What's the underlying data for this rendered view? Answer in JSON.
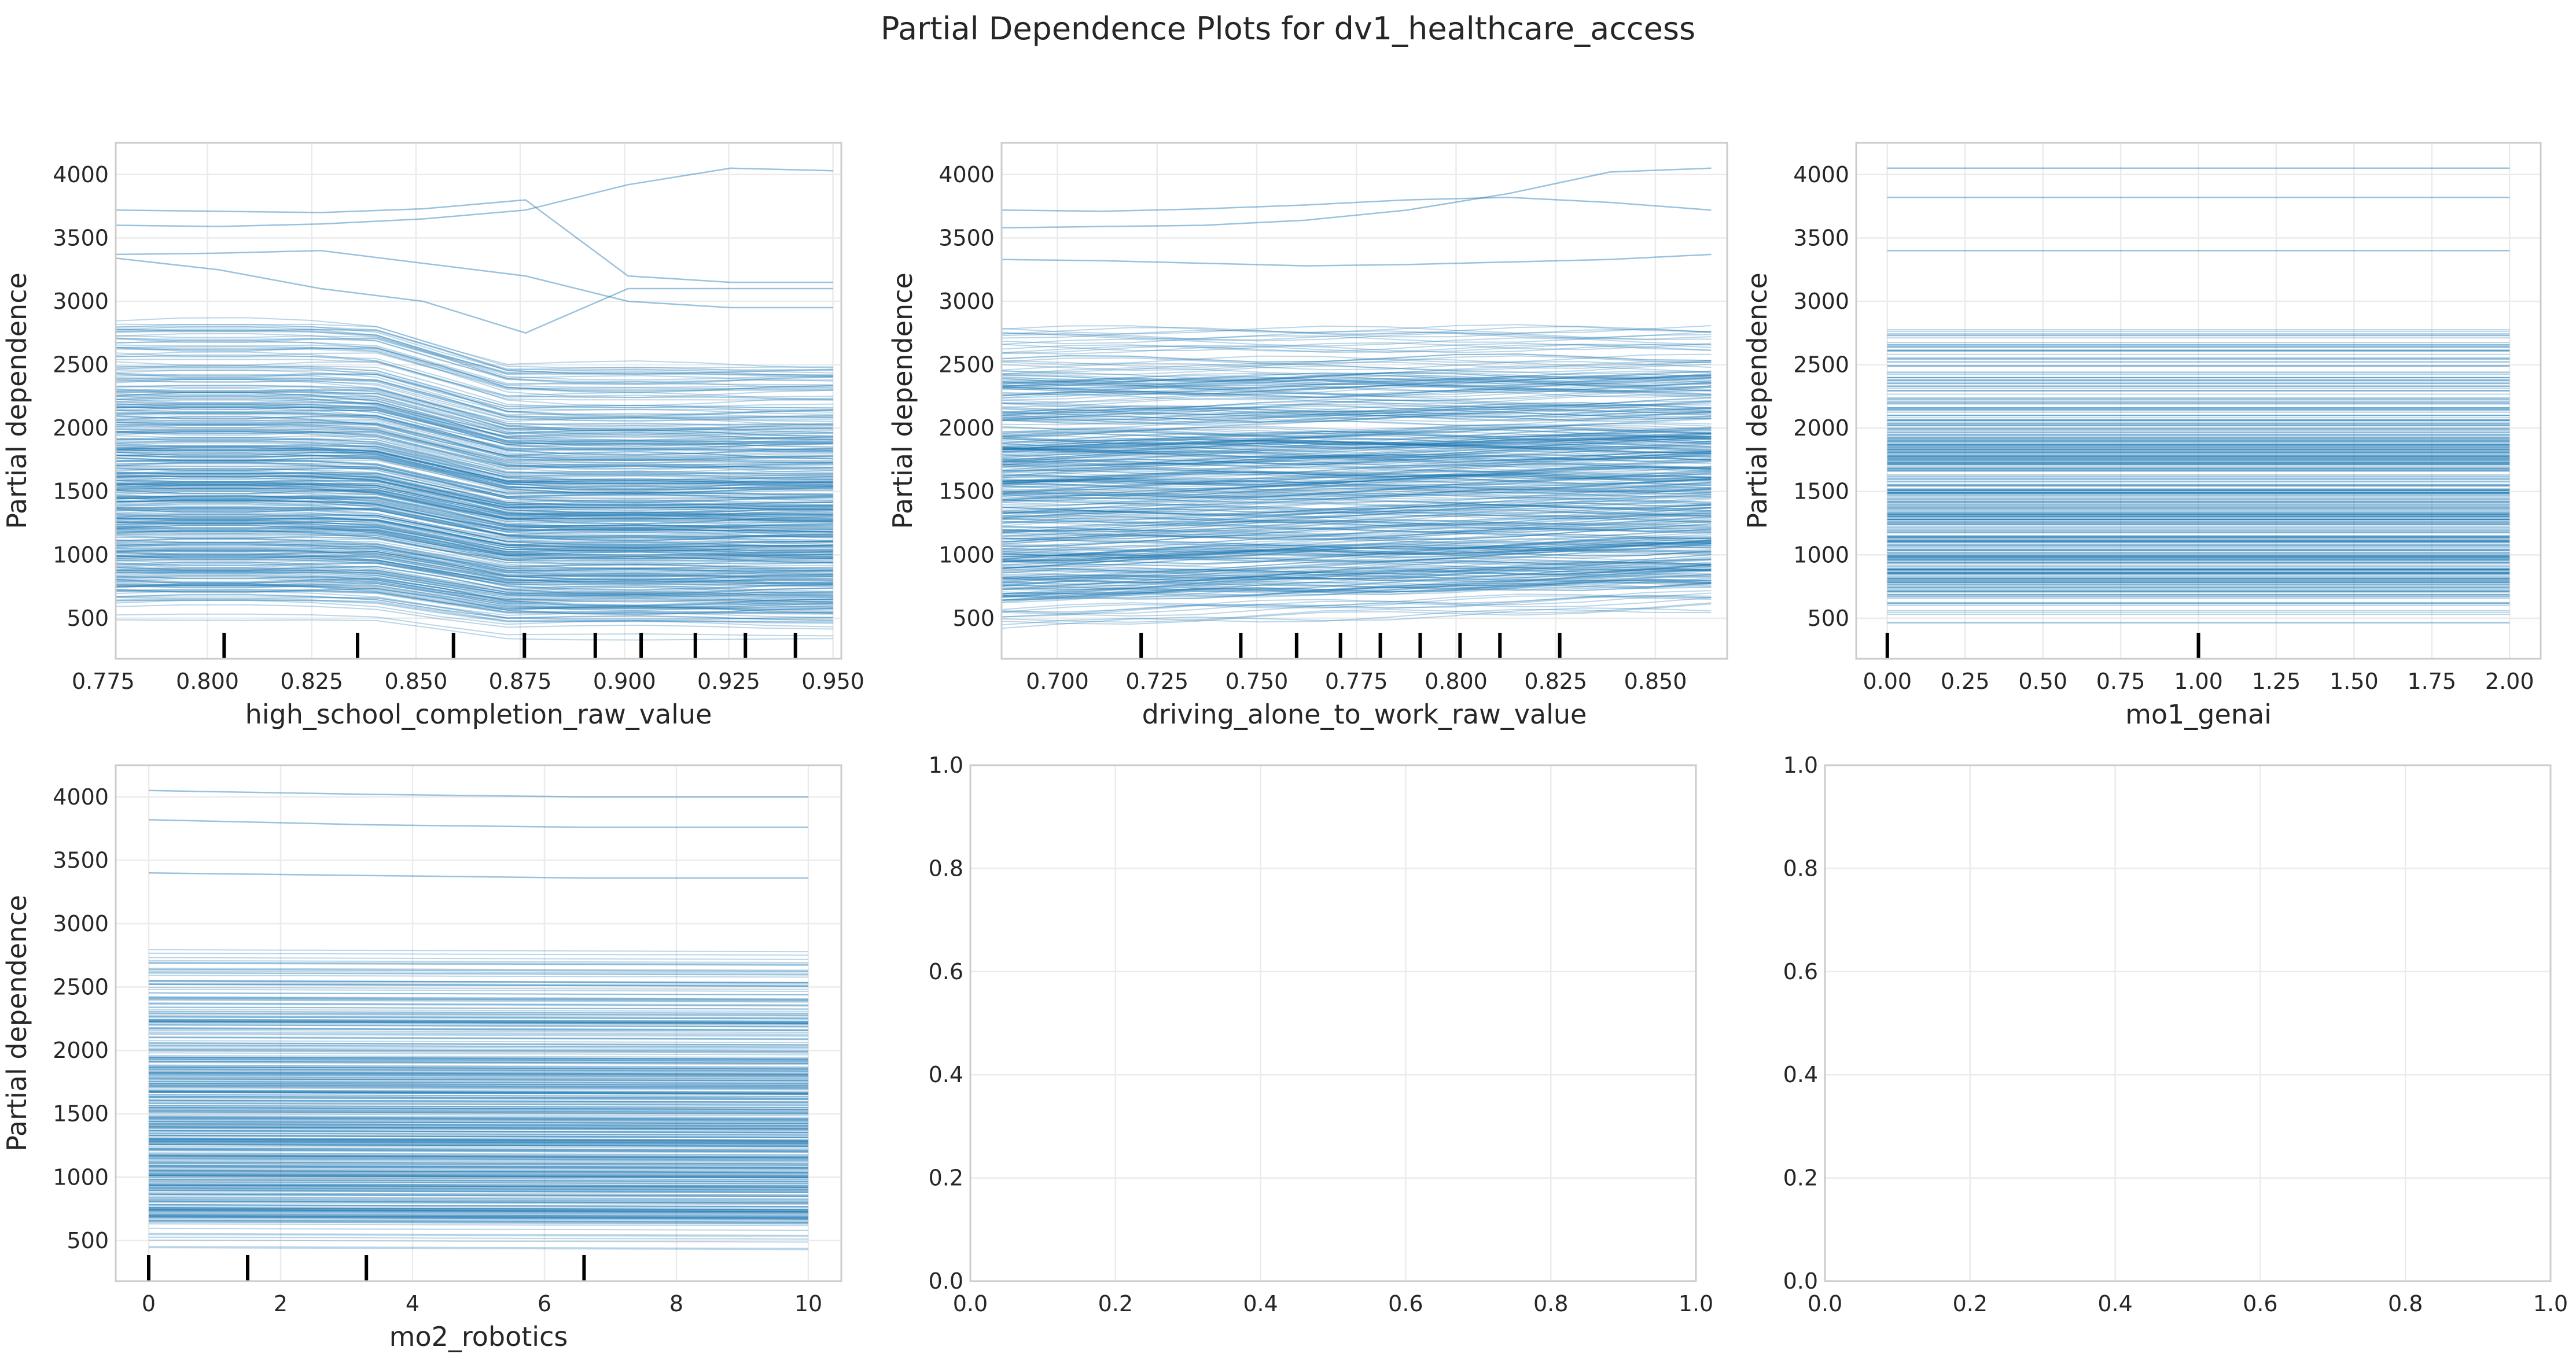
{
  "figure": {
    "title": "Partial Dependence Plots for dv1_healthcare_access",
    "line_color": "#1f77b4",
    "rug_color": "#000000",
    "grid_color": "#ebebeb",
    "frame_color": "#cccccc"
  },
  "chart_data": [
    {
      "type": "line",
      "description_kind": "individual-conditional-expectation",
      "xlabel": "high_school_completion_raw_value",
      "ylabel": "Partial dependence",
      "xlim": [
        0.778,
        0.952
      ],
      "ylim": [
        180,
        4250
      ],
      "x_ticks": [
        0.775,
        0.8,
        0.825,
        0.85,
        0.875,
        0.9,
        0.925,
        0.95
      ],
      "x_tick_labels": [
        "0.775",
        "0.800",
        "0.825",
        "0.850",
        "0.875",
        "0.900",
        "0.925",
        "0.950"
      ],
      "y_ticks": [
        500,
        1000,
        1500,
        2000,
        2500,
        3000,
        3500,
        4000
      ],
      "y_tick_labels": [
        "500",
        "1000",
        "1500",
        "2000",
        "2500",
        "3000",
        "3500",
        "4000"
      ],
      "x_range": [
        0.778,
        0.95
      ],
      "rug": [
        0.804,
        0.836,
        0.859,
        0.876,
        0.893,
        0.904,
        0.917,
        0.929,
        0.941
      ],
      "pattern": "drop",
      "lines_count": 420,
      "highlight_lines": [
        {
          "y": [
            3720,
            3710,
            3700,
            3730,
            3800,
            3200,
            3150,
            3150
          ]
        },
        {
          "y": [
            3600,
            3590,
            3610,
            3650,
            3720,
            3920,
            4050,
            4030
          ]
        },
        {
          "y": [
            3370,
            3380,
            3400,
            3300,
            3200,
            3000,
            2950,
            2950
          ]
        },
        {
          "y": [
            3340,
            3250,
            3100,
            3000,
            2750,
            3100,
            3100,
            3100
          ]
        }
      ]
    },
    {
      "type": "line",
      "description_kind": "individual-conditional-expectation",
      "xlabel": "driving_alone_to_work_raw_value",
      "ylabel": "Partial dependence",
      "xlim": [
        0.686,
        0.868
      ],
      "ylim": [
        180,
        4250
      ],
      "x_ticks": [
        0.7,
        0.725,
        0.75,
        0.775,
        0.8,
        0.825,
        0.85
      ],
      "x_tick_labels": [
        "0.700",
        "0.725",
        "0.750",
        "0.775",
        "0.800",
        "0.825",
        "0.850"
      ],
      "y_ticks": [
        500,
        1000,
        1500,
        2000,
        2500,
        3000,
        3500,
        4000
      ],
      "y_tick_labels": [
        "500",
        "1000",
        "1500",
        "2000",
        "2500",
        "3000",
        "3500",
        "4000"
      ],
      "x_range": [
        0.686,
        0.864
      ],
      "rug": [
        0.721,
        0.746,
        0.76,
        0.771,
        0.781,
        0.791,
        0.801,
        0.811,
        0.826
      ],
      "pattern": "rise",
      "lines_count": 420,
      "highlight_lines": [
        {
          "y": [
            3720,
            3710,
            3730,
            3760,
            3800,
            3820,
            3780,
            3720
          ]
        },
        {
          "y": [
            3580,
            3590,
            3600,
            3640,
            3720,
            3850,
            4020,
            4050
          ]
        },
        {
          "y": [
            3330,
            3320,
            3300,
            3280,
            3290,
            3310,
            3330,
            3370
          ]
        }
      ]
    },
    {
      "type": "line",
      "description_kind": "individual-conditional-expectation",
      "xlabel": "mo1_genai",
      "ylabel": "Partial dependence",
      "xlim": [
        -0.1,
        2.1
      ],
      "ylim": [
        180,
        4250
      ],
      "x_ticks": [
        0,
        0.25,
        0.5,
        0.75,
        1,
        1.25,
        1.5,
        1.75,
        2
      ],
      "x_tick_labels": [
        "0.00",
        "0.25",
        "0.50",
        "0.75",
        "1.00",
        "1.25",
        "1.50",
        "1.75",
        "2.00"
      ],
      "y_ticks": [
        500,
        1000,
        1500,
        2000,
        2500,
        3000,
        3500,
        4000
      ],
      "y_tick_labels": [
        "500",
        "1000",
        "1500",
        "2000",
        "2500",
        "3000",
        "3500",
        "4000"
      ],
      "x_range": [
        0,
        2
      ],
      "rug": [
        0,
        1
      ],
      "pattern": "flat",
      "lines_count": 420,
      "highlight_lines": [
        {
          "y": [
            4050,
            4050
          ]
        },
        {
          "y": [
            3820,
            3820
          ]
        },
        {
          "y": [
            3400,
            3400
          ]
        }
      ]
    },
    {
      "type": "line",
      "description_kind": "individual-conditional-expectation",
      "xlabel": "mo2_robotics",
      "ylabel": "Partial dependence",
      "xlim": [
        -0.5,
        10.5
      ],
      "ylim": [
        180,
        4250
      ],
      "x_ticks": [
        0,
        2,
        4,
        6,
        8,
        10
      ],
      "x_tick_labels": [
        "0",
        "2",
        "4",
        "6",
        "8",
        "10"
      ],
      "y_ticks": [
        500,
        1000,
        1500,
        2000,
        2500,
        3000,
        3500,
        4000
      ],
      "y_tick_labels": [
        "500",
        "1000",
        "1500",
        "2000",
        "2500",
        "3000",
        "3500",
        "4000"
      ],
      "x_range": [
        0,
        10
      ],
      "rug": [
        0,
        1.5,
        3.3,
        6.6
      ],
      "pattern": "flat-slight",
      "lines_count": 420,
      "highlight_lines": [
        {
          "y": [
            4050,
            4020,
            4000,
            4000
          ]
        },
        {
          "y": [
            3820,
            3780,
            3760,
            3760
          ]
        },
        {
          "y": [
            3400,
            3380,
            3360,
            3360
          ]
        }
      ]
    },
    {
      "type": "empty",
      "xlim": [
        0,
        1
      ],
      "ylim": [
        0,
        1
      ],
      "x_ticks": [
        0,
        0.2,
        0.4,
        0.6,
        0.8,
        1
      ],
      "x_tick_labels": [
        "0.0",
        "0.2",
        "0.4",
        "0.6",
        "0.8",
        "1.0"
      ],
      "y_ticks": [
        0,
        0.2,
        0.4,
        0.6,
        0.8,
        1
      ],
      "y_tick_labels": [
        "0.0",
        "0.2",
        "0.4",
        "0.6",
        "0.8",
        "1.0"
      ]
    },
    {
      "type": "empty",
      "xlim": [
        0,
        1
      ],
      "ylim": [
        0,
        1
      ],
      "x_ticks": [
        0,
        0.2,
        0.4,
        0.6,
        0.8,
        1
      ],
      "x_tick_labels": [
        "0.0",
        "0.2",
        "0.4",
        "0.6",
        "0.8",
        "1.0"
      ],
      "y_ticks": [
        0,
        0.2,
        0.4,
        0.6,
        0.8,
        1
      ],
      "y_tick_labels": [
        "0.0",
        "0.2",
        "0.4",
        "0.6",
        "0.8",
        "1.0"
      ]
    }
  ]
}
